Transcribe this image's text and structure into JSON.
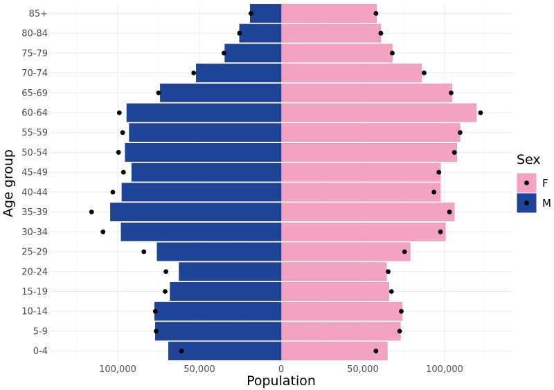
{
  "chart_data": {
    "type": "bar",
    "orientation": "horizontal",
    "layout": "population-pyramid",
    "xlabel": "Population",
    "ylabel": "Age group",
    "xlim": [
      -145000,
      145000
    ],
    "x_ticks": [
      -100000,
      -50000,
      0,
      50000,
      100000
    ],
    "x_tick_labels": [
      "100,000",
      "50,000",
      "0",
      "50,000",
      "100,000"
    ],
    "grid": true,
    "categories": [
      "0-4",
      "5-9",
      "10-14",
      "15-19",
      "20-24",
      "25-29",
      "30-34",
      "35-39",
      "40-44",
      "45-49",
      "50-54",
      "55-59",
      "60-64",
      "65-69",
      "70-74",
      "75-79",
      "80-84",
      "85+"
    ],
    "series": [
      {
        "name": "F",
        "color": "#f4a2c1",
        "direction": "right",
        "bar_values": [
          65000,
          73000,
          74000,
          66000,
          64500,
          79000,
          100500,
          106000,
          97500,
          97500,
          107500,
          109500,
          119500,
          104500,
          86000,
          68000,
          61000,
          58500
        ],
        "point_values": [
          58000,
          72500,
          73500,
          67500,
          65500,
          75500,
          97500,
          103000,
          93500,
          96500,
          106000,
          109500,
          122000,
          104000,
          87500,
          68000,
          61000,
          58000
        ]
      },
      {
        "name": "M",
        "color": "#1f4397",
        "direction": "left",
        "bar_values": [
          69000,
          77000,
          77500,
          68000,
          62500,
          76000,
          98000,
          104500,
          97500,
          91500,
          95500,
          93000,
          94500,
          74000,
          52000,
          34500,
          25500,
          19000
        ],
        "point_values": [
          61000,
          76500,
          77000,
          71000,
          70500,
          84000,
          109000,
          116000,
          103000,
          96500,
          99500,
          97000,
          99000,
          75000,
          53500,
          35000,
          25500,
          18500
        ]
      }
    ],
    "legend": {
      "title": "Sex",
      "position": "right",
      "entries": [
        "F",
        "M"
      ]
    }
  }
}
